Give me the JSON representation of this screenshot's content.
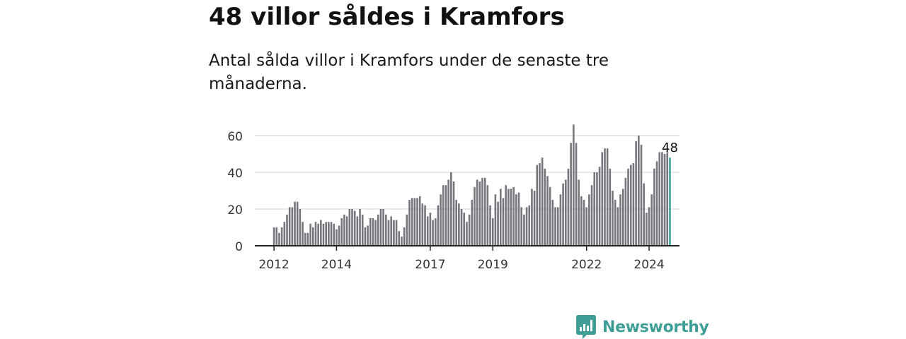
{
  "title": "48 villor såldes i Kramfors",
  "subtitle": "Antal sålda villor i Kramfors under de senaste tre månaderna.",
  "chart_data": {
    "type": "bar",
    "title": "48 villor såldes i Kramfors",
    "subtitle": "Antal sålda villor i Kramfors under de senaste tre månaderna.",
    "xlabel": "",
    "ylabel": "",
    "ylim": [
      0,
      66
    ],
    "y_ticks": [
      0,
      20,
      40,
      60
    ],
    "x_tick_labels": [
      "2012",
      "2014",
      "2017",
      "2019",
      "2022",
      "2024"
    ],
    "grid": "horizontal",
    "start": "2012-01",
    "frequency": "monthly",
    "values": [
      10,
      10,
      7,
      10,
      13,
      17,
      21,
      21,
      24,
      24,
      20,
      13,
      7,
      7,
      12,
      10,
      13,
      12,
      14,
      12,
      13,
      13,
      13,
      12,
      9,
      11,
      15,
      17,
      16,
      20,
      20,
      19,
      16,
      20,
      17,
      10,
      11,
      15,
      15,
      14,
      17,
      20,
      20,
      17,
      14,
      16,
      14,
      14,
      8,
      5,
      10,
      17,
      25,
      26,
      26,
      26,
      27,
      23,
      22,
      16,
      18,
      14,
      15,
      22,
      28,
      33,
      33,
      36,
      40,
      35,
      25,
      23,
      20,
      18,
      13,
      17,
      25,
      32,
      36,
      35,
      37,
      37,
      33,
      22,
      15,
      28,
      24,
      31,
      26,
      33,
      31,
      31,
      32,
      28,
      29,
      21,
      17,
      21,
      22,
      31,
      30,
      44,
      45,
      48,
      42,
      38,
      32,
      25,
      21,
      21,
      28,
      34,
      36,
      42,
      56,
      66,
      56,
      36,
      27,
      25,
      21,
      28,
      33,
      40,
      40,
      43,
      51,
      53,
      53,
      42,
      30,
      25,
      21,
      28,
      31,
      37,
      42,
      44,
      45,
      57,
      60,
      55,
      34,
      18,
      21,
      28,
      42,
      46,
      51,
      51,
      50,
      51,
      48
    ],
    "highlight_label": "48",
    "colors": {
      "bars": "#77767c",
      "highlight": "#3aa39b",
      "grid": "#dcdcdc",
      "axis": "#222222"
    }
  },
  "brand": {
    "name": "Newsworthy",
    "icon": "newsworthy-logo-icon",
    "color": "#3f9f97"
  }
}
